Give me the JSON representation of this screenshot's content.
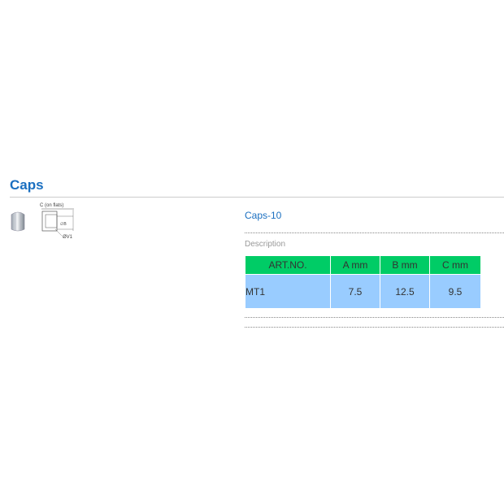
{
  "section": {
    "title": "Caps"
  },
  "drawing": {
    "label_top": "C (on flats)",
    "label_side": "∅B",
    "label_bottom": "ØV1"
  },
  "product": {
    "title": "Caps-10",
    "description_label": "Description"
  },
  "table": {
    "headers": [
      "ART.NO.",
      "A mm",
      "B mm",
      "C mm"
    ],
    "rows": [
      [
        "MT1",
        "7.5",
        "12.5",
        "9.5"
      ]
    ]
  },
  "colors": {
    "accent": "#1a6fc0",
    "header": "#00cc66",
    "row": "#99ccff"
  }
}
